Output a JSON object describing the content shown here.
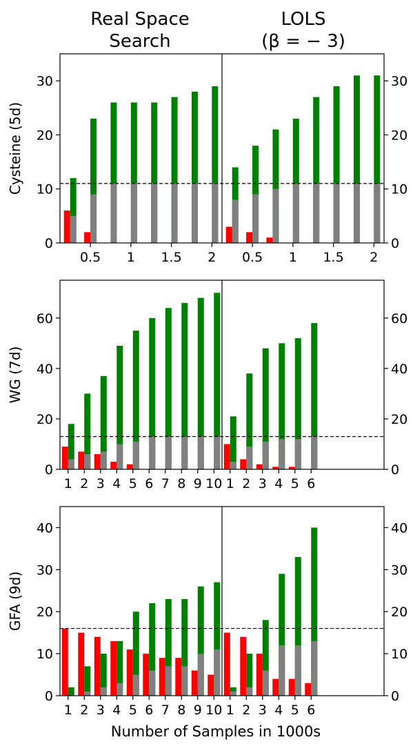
{
  "column_titles": [
    {
      "line1": "Real Space",
      "line2": "Search"
    },
    {
      "line1": "LOLS",
      "line2": "(β = − 3)"
    }
  ],
  "xlabel": "Number of Samples in 1000s",
  "colors": {
    "red": "#ff0000",
    "green": "#008000",
    "gray": "#808080",
    "axis": "#000000",
    "dashed": "#000000"
  },
  "chart_data": [
    {
      "type": "bar",
      "ylabel": "Cysteine (5d)",
      "ylim": [
        0,
        35
      ],
      "yticks": [
        0,
        10,
        20,
        30
      ],
      "dashed_y": 11,
      "panels": [
        {
          "column": "Real Space Search",
          "xlim": [
            0.125,
            2.125
          ],
          "xticks": [
            0.5,
            1,
            1.5,
            2
          ],
          "xtick_labels": [
            "0.5",
            "1",
            "1.5",
            "2"
          ],
          "groups": [
            {
              "x": 0.25,
              "red": 6,
              "green": 12,
              "gray": 5
            },
            {
              "x": 0.5,
              "red": 2,
              "green": 23,
              "gray": 9
            },
            {
              "x": 0.75,
              "red": 0,
              "green": 26,
              "gray": 11
            },
            {
              "x": 1.0,
              "red": 0,
              "green": 26,
              "gray": 11
            },
            {
              "x": 1.25,
              "red": 0,
              "green": 26,
              "gray": 11
            },
            {
              "x": 1.5,
              "red": 0,
              "green": 27,
              "gray": 11
            },
            {
              "x": 1.75,
              "red": 0,
              "green": 28,
              "gray": 11
            },
            {
              "x": 2.0,
              "red": 0,
              "green": 29,
              "gray": 11
            }
          ]
        },
        {
          "column": "LOLS (β = −3)",
          "xlim": [
            0.125,
            2.125
          ],
          "xticks": [
            0.5,
            1,
            1.5,
            2
          ],
          "xtick_labels": [
            "0.5",
            "1",
            "1.5",
            "2"
          ],
          "groups": [
            {
              "x": 0.25,
              "red": 3,
              "green": 14,
              "gray": 8
            },
            {
              "x": 0.5,
              "red": 2,
              "green": 18,
              "gray": 9
            },
            {
              "x": 0.75,
              "red": 1,
              "green": 21,
              "gray": 10
            },
            {
              "x": 1.0,
              "red": 0,
              "green": 23,
              "gray": 11
            },
            {
              "x": 1.25,
              "red": 0,
              "green": 27,
              "gray": 11
            },
            {
              "x": 1.5,
              "red": 0,
              "green": 29,
              "gray": 11
            },
            {
              "x": 1.75,
              "red": 0,
              "green": 31,
              "gray": 11
            },
            {
              "x": 2.0,
              "red": 0,
              "green": 31,
              "gray": 11
            }
          ]
        }
      ]
    },
    {
      "type": "bar",
      "ylabel": "WG (7d)",
      "ylim": [
        0,
        75
      ],
      "yticks": [
        0,
        20,
        40,
        60
      ],
      "dashed_y": 13,
      "panels": [
        {
          "column": "Real Space Search",
          "xlim": [
            0.5,
            10.5
          ],
          "xticks": [
            1,
            2,
            3,
            4,
            5,
            6,
            7,
            8,
            9,
            10
          ],
          "xtick_labels": [
            "1",
            "2",
            "3",
            "4",
            "5",
            "6",
            "7",
            "8",
            "9",
            "10"
          ],
          "groups": [
            {
              "x": 1,
              "red": 9,
              "green": 18,
              "gray": 4
            },
            {
              "x": 2,
              "red": 7,
              "green": 30,
              "gray": 6
            },
            {
              "x": 3,
              "red": 6,
              "green": 37,
              "gray": 7
            },
            {
              "x": 4,
              "red": 3,
              "green": 49,
              "gray": 10
            },
            {
              "x": 5,
              "red": 2,
              "green": 55,
              "gray": 11
            },
            {
              "x": 6,
              "red": 0,
              "green": 60,
              "gray": 13
            },
            {
              "x": 7,
              "red": 0,
              "green": 64,
              "gray": 13
            },
            {
              "x": 8,
              "red": 0,
              "green": 66,
              "gray": 13
            },
            {
              "x": 9,
              "red": 0,
              "green": 68,
              "gray": 13
            },
            {
              "x": 10,
              "red": 0,
              "green": 70,
              "gray": 13
            }
          ]
        },
        {
          "column": "LOLS (β = −3)",
          "xlim": [
            0.5,
            10.5
          ],
          "xticks": [
            1,
            2,
            3,
            4,
            5,
            6
          ],
          "xtick_labels": [
            "1",
            "2",
            "3",
            "4",
            "5",
            "6"
          ],
          "groups": [
            {
              "x": 1,
              "red": 10,
              "green": 21,
              "gray": 3
            },
            {
              "x": 2,
              "red": 4,
              "green": 38,
              "gray": 9
            },
            {
              "x": 3,
              "red": 2,
              "green": 48,
              "gray": 11
            },
            {
              "x": 4,
              "red": 1,
              "green": 50,
              "gray": 12
            },
            {
              "x": 5,
              "red": 1,
              "green": 52,
              "gray": 12
            },
            {
              "x": 6,
              "red": 0,
              "green": 58,
              "gray": 13
            }
          ]
        }
      ]
    },
    {
      "type": "bar",
      "ylabel": "GFA (9d)",
      "ylim": [
        0,
        45
      ],
      "yticks": [
        0,
        10,
        20,
        30,
        40
      ],
      "dashed_y": 16,
      "panels": [
        {
          "column": "Real Space Search",
          "xlim": [
            0.5,
            10.5
          ],
          "xticks": [
            1,
            2,
            3,
            4,
            5,
            6,
            7,
            8,
            9,
            10
          ],
          "xtick_labels": [
            "1",
            "2",
            "3",
            "4",
            "5",
            "6",
            "7",
            "8",
            "9",
            "10"
          ],
          "groups": [
            {
              "x": 1,
              "red": 16,
              "green": 2,
              "gray": 0
            },
            {
              "x": 2,
              "red": 15,
              "green": 7,
              "gray": 1
            },
            {
              "x": 3,
              "red": 14,
              "green": 10,
              "gray": 2
            },
            {
              "x": 4,
              "red": 13,
              "green": 13,
              "gray": 3
            },
            {
              "x": 5,
              "red": 11,
              "green": 20,
              "gray": 5
            },
            {
              "x": 6,
              "red": 10,
              "green": 22,
              "gray": 6
            },
            {
              "x": 7,
              "red": 9,
              "green": 23,
              "gray": 7
            },
            {
              "x": 8,
              "red": 9,
              "green": 23,
              "gray": 7
            },
            {
              "x": 9,
              "red": 6,
              "green": 26,
              "gray": 10
            },
            {
              "x": 10,
              "red": 5,
              "green": 27,
              "gray": 11
            }
          ]
        },
        {
          "column": "LOLS (β = −3)",
          "xlim": [
            0.5,
            10.5
          ],
          "xticks": [
            1,
            2,
            3,
            4,
            5,
            6
          ],
          "xtick_labels": [
            "1",
            "2",
            "3",
            "4",
            "5",
            "6"
          ],
          "groups": [
            {
              "x": 1,
              "red": 15,
              "green": 2,
              "gray": 1
            },
            {
              "x": 2,
              "red": 14,
              "green": 10,
              "gray": 2
            },
            {
              "x": 3,
              "red": 10,
              "green": 18,
              "gray": 6
            },
            {
              "x": 4,
              "red": 4,
              "green": 29,
              "gray": 12
            },
            {
              "x": 5,
              "red": 4,
              "green": 33,
              "gray": 12
            },
            {
              "x": 6,
              "red": 3,
              "green": 40,
              "gray": 13
            }
          ]
        }
      ]
    }
  ]
}
